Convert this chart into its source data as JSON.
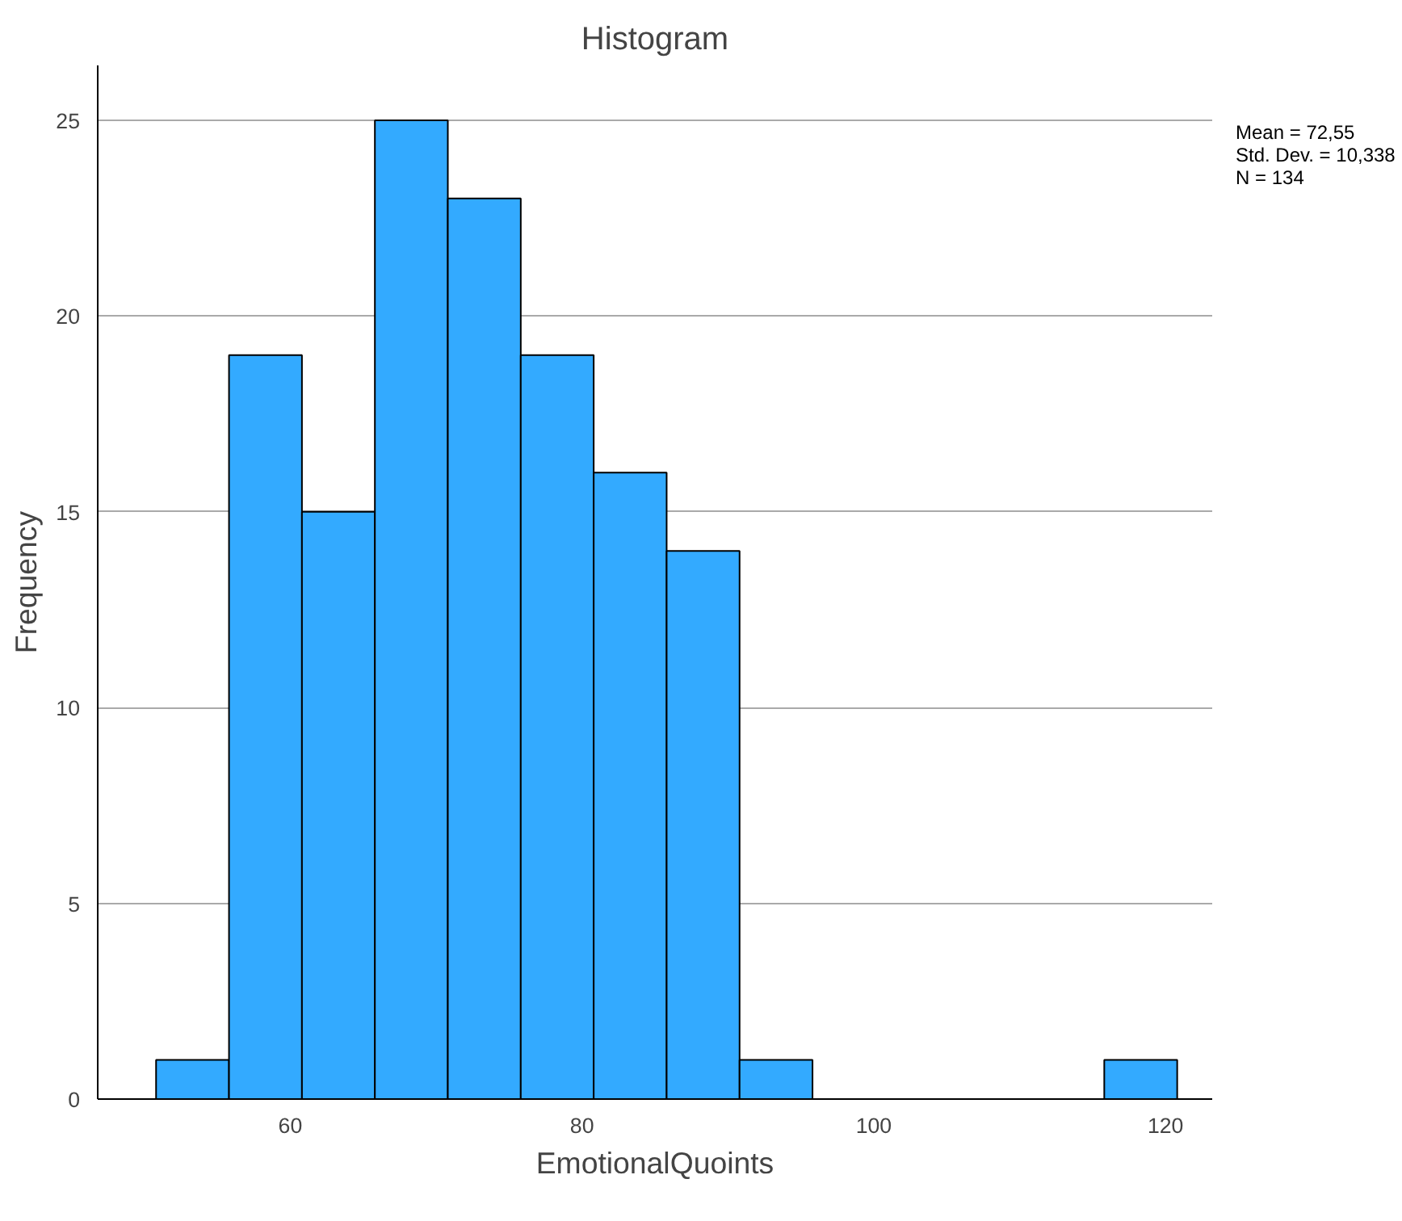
{
  "chart_data": {
    "type": "histogram",
    "title": "Histogram",
    "xlabel": "EmotionalQuoints",
    "ylabel": "Frequency",
    "bins": [
      50.8,
      55.8,
      60.8,
      65.8,
      70.8,
      75.8,
      80.8,
      85.8,
      90.8,
      95.8,
      100.8,
      105.8,
      110.8,
      115.8,
      120.8
    ],
    "values": [
      1,
      19,
      15,
      25,
      23,
      19,
      16,
      14,
      1,
      0,
      0,
      0,
      0,
      1
    ],
    "color": "#33aaff",
    "xlim": [
      46.8,
      123.2
    ],
    "xticks": [
      60,
      80,
      100,
      120
    ],
    "ylim": [
      0,
      26.4
    ],
    "yticks": [
      0,
      5,
      10,
      15,
      20,
      25
    ],
    "grid": "y",
    "annotations": [
      "Mean = 72,55",
      "Std. Dev. = 10,338",
      "N = 134"
    ]
  }
}
